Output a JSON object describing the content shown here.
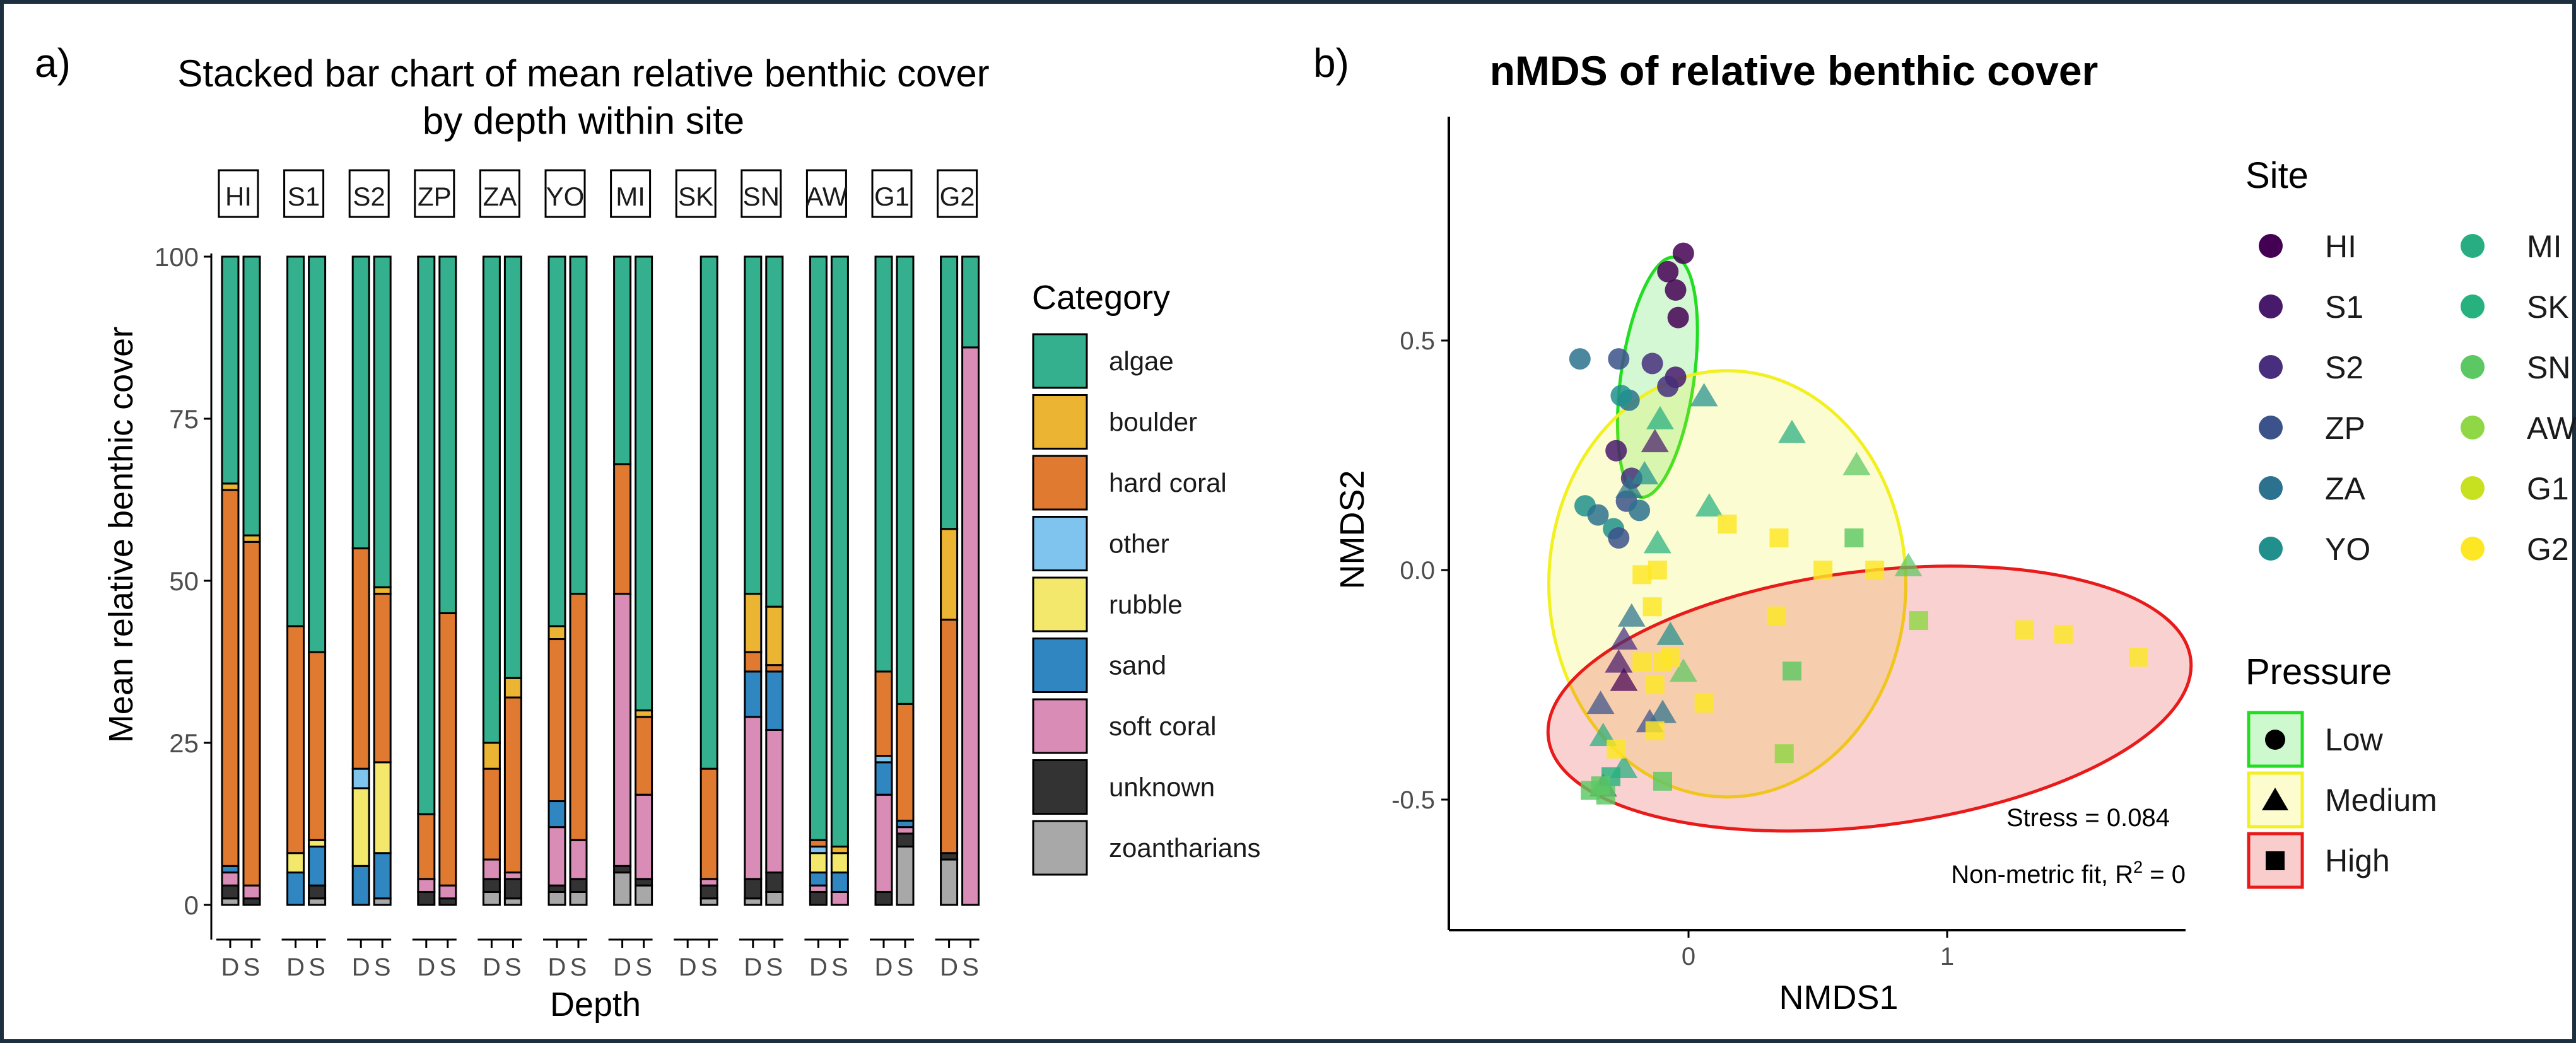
{
  "colors": {
    "frame": "#1d2f3f",
    "algae": "#35b08e",
    "boulder": "#ebb432",
    "hard_coral": "#e07a30",
    "other": "#7ec4ee",
    "rubble": "#f3e86c",
    "sand": "#2f86c1",
    "soft_coral": "#d98cb6",
    "unknown": "#333333",
    "zoantharians": "#a8a8a8",
    "pressure_low": "#22dd22",
    "pressure_medium": "#f2f020",
    "pressure_high": "#e81a1a"
  },
  "panel_a": {
    "tag": "a)",
    "title_line1": "Stacked bar chart of mean relative benthic cover",
    "title_line2": "by depth within site",
    "ylabel": "Mean relative benthic cover",
    "xlabel": "Depth",
    "legend_title": "Category"
  },
  "panel_b": {
    "tag": "b)",
    "title": "nMDS of relative benthic cover",
    "xlabel": "NMDS1",
    "ylabel": "NMDS2",
    "stress": "Stress = 0.084",
    "fit_prefix": "Non-metric fit, R",
    "fit_sup": "2",
    "fit_suffix": " = 0",
    "site_legend_title": "Site",
    "pressure_legend_title": "Pressure"
  },
  "chart_data": [
    {
      "type": "bar",
      "stacked": true,
      "facets": [
        "HI",
        "S1",
        "S2",
        "ZP",
        "ZA",
        "YO",
        "MI",
        "SK",
        "SN",
        "AW",
        "G1",
        "G2"
      ],
      "depths": [
        "D",
        "S"
      ],
      "ylim": [
        0,
        100
      ],
      "yticks": [
        0,
        25,
        50,
        75,
        100
      ],
      "categories": [
        "zoantharians",
        "unknown",
        "soft coral",
        "sand",
        "rubble",
        "other",
        "hard coral",
        "boulder",
        "algae"
      ],
      "category_keys": [
        "zoantharians",
        "unknown",
        "soft_coral",
        "sand",
        "rubble",
        "other",
        "hard_coral",
        "boulder",
        "algae"
      ],
      "legend_order": [
        "algae",
        "boulder",
        "hard coral",
        "other",
        "rubble",
        "sand",
        "soft coral",
        "unknown",
        "zoantharians"
      ],
      "legend_keys": [
        "algae",
        "boulder",
        "hard_coral",
        "other",
        "rubble",
        "sand",
        "soft_coral",
        "unknown",
        "zoantharians"
      ],
      "bars": [
        {
          "site": "HI",
          "depth": "D",
          "values": [
            1,
            2,
            2,
            1,
            0,
            0,
            58,
            1,
            35
          ]
        },
        {
          "site": "HI",
          "depth": "S",
          "values": [
            0,
            1,
            2,
            0,
            0,
            0,
            53,
            1,
            43
          ]
        },
        {
          "site": "S1",
          "depth": "D",
          "values": [
            0,
            0,
            0,
            5,
            3,
            0,
            35,
            0,
            57
          ]
        },
        {
          "site": "S1",
          "depth": "S",
          "values": [
            1,
            2,
            0,
            6,
            1,
            0,
            29,
            0,
            61
          ]
        },
        {
          "site": "S2",
          "depth": "D",
          "values": [
            0,
            0,
            0,
            6,
            12,
            3,
            34,
            0,
            45
          ]
        },
        {
          "site": "S2",
          "depth": "S",
          "values": [
            1,
            0,
            0,
            7,
            14,
            0,
            26,
            1,
            51
          ]
        },
        {
          "site": "ZP",
          "depth": "D",
          "values": [
            0,
            2,
            2,
            0,
            0,
            0,
            10,
            0,
            86
          ]
        },
        {
          "site": "ZP",
          "depth": "S",
          "values": [
            0,
            1,
            2,
            0,
            0,
            0,
            42,
            0,
            55
          ]
        },
        {
          "site": "ZA",
          "depth": "D",
          "values": [
            2,
            2,
            3,
            0,
            0,
            0,
            14,
            4,
            75
          ]
        },
        {
          "site": "ZA",
          "depth": "S",
          "values": [
            1,
            3,
            1,
            0,
            0,
            0,
            27,
            3,
            65
          ]
        },
        {
          "site": "YO",
          "depth": "D",
          "values": [
            2,
            1,
            9,
            4,
            0,
            0,
            25,
            2,
            57
          ]
        },
        {
          "site": "YO",
          "depth": "S",
          "values": [
            2,
            2,
            6,
            0,
            0,
            0,
            38,
            0,
            52
          ]
        },
        {
          "site": "MI",
          "depth": "D",
          "values": [
            5,
            1,
            42,
            0,
            0,
            0,
            20,
            0,
            32
          ]
        },
        {
          "site": "MI",
          "depth": "S",
          "values": [
            3,
            1,
            13,
            0,
            0,
            0,
            12,
            1,
            70
          ]
        },
        {
          "site": "SK",
          "depth": "S",
          "values": [
            1,
            2,
            1,
            0,
            0,
            0,
            17,
            0,
            79
          ]
        },
        {
          "site": "SN",
          "depth": "D",
          "values": [
            1,
            3,
            25,
            7,
            0,
            0,
            3,
            9,
            52
          ]
        },
        {
          "site": "SN",
          "depth": "S",
          "values": [
            2,
            3,
            22,
            9,
            0,
            0,
            1,
            9,
            54
          ]
        },
        {
          "site": "AW",
          "depth": "D",
          "values": [
            0,
            2,
            1,
            2,
            3,
            1,
            1,
            0,
            90
          ]
        },
        {
          "site": "AW",
          "depth": "S",
          "values": [
            0,
            0,
            2,
            3,
            3,
            0,
            0,
            1,
            91
          ]
        },
        {
          "site": "G1",
          "depth": "D",
          "values": [
            0,
            2,
            15,
            5,
            0,
            1,
            13,
            0,
            64
          ]
        },
        {
          "site": "G1",
          "depth": "S",
          "values": [
            9,
            2,
            1,
            1,
            0,
            0,
            18,
            0,
            69
          ]
        },
        {
          "site": "G2",
          "depth": "D",
          "values": [
            7,
            1,
            0,
            0,
            0,
            0,
            36,
            14,
            42
          ]
        },
        {
          "site": "G2",
          "depth": "S",
          "values": [
            0,
            0,
            86,
            0,
            0,
            0,
            0,
            0,
            14
          ]
        }
      ]
    },
    {
      "type": "scatter",
      "title": "nMDS of relative benthic cover",
      "xlabel": "NMDS1",
      "ylabel": "NMDS2",
      "xlim": [
        -0.95,
        1.95
      ],
      "ylim": [
        -0.78,
        0.98
      ],
      "xticks": [
        0,
        1
      ],
      "yticks": [
        -0.5,
        0.0,
        0.5
      ],
      "ytick_labels": [
        "-0.5",
        "0.0",
        "0.5"
      ],
      "stress": 0.084,
      "r2": 0,
      "sites": [
        {
          "name": "HI",
          "color": "#440154"
        },
        {
          "name": "S1",
          "color": "#481a6c"
        },
        {
          "name": "S2",
          "color": "#472f7d"
        },
        {
          "name": "ZP",
          "color": "#3b528b"
        },
        {
          "name": "ZA",
          "color": "#2c728e"
        },
        {
          "name": "YO",
          "color": "#21908d"
        },
        {
          "name": "MI",
          "color": "#27ad81"
        },
        {
          "name": "SK",
          "color": "#27b17e"
        },
        {
          "name": "SN",
          "color": "#5cc863"
        },
        {
          "name": "AW",
          "color": "#8fd744"
        },
        {
          "name": "G1",
          "color": "#c7e020"
        },
        {
          "name": "G2",
          "color": "#fde725"
        }
      ],
      "pressure_levels": [
        "Low",
        "Medium",
        "High"
      ],
      "ellipses": [
        {
          "pressure": "Low",
          "cx": -0.12,
          "cy": 0.42,
          "rx": 0.31,
          "ry": 0.11,
          "angle": 82
        },
        {
          "pressure": "Medium",
          "cx": 0.15,
          "cy": -0.03,
          "rx": 0.72,
          "ry": 0.46,
          "angle": 90
        },
        {
          "pressure": "High",
          "cx": 0.7,
          "cy": -0.28,
          "rx": 1.27,
          "ry": 0.33,
          "angle": 6
        }
      ],
      "points": [
        {
          "x": -0.02,
          "y": 0.69,
          "site": "HI",
          "shape": "circle"
        },
        {
          "x": -0.08,
          "y": 0.65,
          "site": "HI",
          "shape": "circle"
        },
        {
          "x": -0.05,
          "y": 0.61,
          "site": "HI",
          "shape": "circle"
        },
        {
          "x": -0.04,
          "y": 0.55,
          "site": "HI",
          "shape": "circle"
        },
        {
          "x": -0.05,
          "y": 0.42,
          "site": "S1",
          "shape": "circle"
        },
        {
          "x": -0.08,
          "y": 0.4,
          "site": "S2",
          "shape": "circle"
        },
        {
          "x": -0.14,
          "y": 0.45,
          "site": "S2",
          "shape": "circle"
        },
        {
          "x": -0.27,
          "y": 0.46,
          "site": "ZP",
          "shape": "circle"
        },
        {
          "x": -0.42,
          "y": 0.46,
          "site": "ZA",
          "shape": "circle"
        },
        {
          "x": -0.23,
          "y": 0.37,
          "site": "ZA",
          "shape": "circle"
        },
        {
          "x": -0.26,
          "y": 0.38,
          "site": "YO",
          "shape": "circle"
        },
        {
          "x": -0.28,
          "y": 0.26,
          "site": "S1",
          "shape": "circle"
        },
        {
          "x": -0.22,
          "y": 0.2,
          "site": "S2",
          "shape": "circle"
        },
        {
          "x": -0.24,
          "y": 0.15,
          "site": "ZP",
          "shape": "circle"
        },
        {
          "x": -0.19,
          "y": 0.13,
          "site": "ZA",
          "shape": "circle"
        },
        {
          "x": -0.4,
          "y": 0.14,
          "site": "YO",
          "shape": "circle"
        },
        {
          "x": -0.35,
          "y": 0.12,
          "site": "ZA",
          "shape": "circle"
        },
        {
          "x": -0.29,
          "y": 0.09,
          "site": "YO",
          "shape": "circle"
        },
        {
          "x": -0.27,
          "y": 0.07,
          "site": "ZP",
          "shape": "circle"
        },
        {
          "x": -0.13,
          "y": 0.28,
          "site": "S1",
          "shape": "triangle"
        },
        {
          "x": -0.17,
          "y": 0.21,
          "site": "YO",
          "shape": "triangle"
        },
        {
          "x": -0.23,
          "y": 0.18,
          "site": "ZA",
          "shape": "triangle"
        },
        {
          "x": -0.11,
          "y": 0.33,
          "site": "MI",
          "shape": "triangle"
        },
        {
          "x": 0.06,
          "y": 0.38,
          "site": "YO",
          "shape": "triangle"
        },
        {
          "x": -0.12,
          "y": 0.06,
          "site": "SK",
          "shape": "triangle"
        },
        {
          "x": 0.08,
          "y": 0.14,
          "site": "SK",
          "shape": "triangle"
        },
        {
          "x": 0.4,
          "y": 0.3,
          "site": "MI",
          "shape": "triangle"
        },
        {
          "x": 0.65,
          "y": 0.23,
          "site": "SN",
          "shape": "triangle"
        },
        {
          "x": 0.85,
          "y": 0.01,
          "site": "SN",
          "shape": "triangle"
        },
        {
          "x": -0.22,
          "y": -0.1,
          "site": "ZA",
          "shape": "triangle"
        },
        {
          "x": -0.25,
          "y": -0.15,
          "site": "S2",
          "shape": "triangle"
        },
        {
          "x": -0.27,
          "y": -0.2,
          "site": "S1",
          "shape": "triangle"
        },
        {
          "x": -0.25,
          "y": -0.24,
          "site": "HI",
          "shape": "triangle"
        },
        {
          "x": -0.34,
          "y": -0.29,
          "site": "ZP",
          "shape": "triangle"
        },
        {
          "x": -0.07,
          "y": -0.14,
          "site": "YO",
          "shape": "triangle"
        },
        {
          "x": -0.02,
          "y": -0.22,
          "site": "SN",
          "shape": "triangle"
        },
        {
          "x": -0.15,
          "y": -0.33,
          "site": "ZP",
          "shape": "triangle"
        },
        {
          "x": -0.1,
          "y": -0.31,
          "site": "ZA",
          "shape": "triangle"
        },
        {
          "x": -0.33,
          "y": -0.36,
          "site": "MI",
          "shape": "triangle"
        },
        {
          "x": -0.33,
          "y": -0.47,
          "site": "S2",
          "shape": "triangle"
        },
        {
          "x": -0.25,
          "y": -0.43,
          "site": "MI",
          "shape": "triangle"
        },
        {
          "x": -0.14,
          "y": -0.08,
          "site": "G2",
          "shape": "square"
        },
        {
          "x": -0.18,
          "y": -0.01,
          "site": "G2",
          "shape": "square"
        },
        {
          "x": -0.12,
          "y": 0.0,
          "site": "G2",
          "shape": "square"
        },
        {
          "x": -0.18,
          "y": -0.2,
          "site": "G2",
          "shape": "square"
        },
        {
          "x": -0.1,
          "y": -0.2,
          "site": "G2",
          "shape": "square"
        },
        {
          "x": -0.07,
          "y": -0.19,
          "site": "G2",
          "shape": "square"
        },
        {
          "x": -0.13,
          "y": -0.25,
          "site": "G2",
          "shape": "square"
        },
        {
          "x": -0.13,
          "y": -0.35,
          "site": "G2",
          "shape": "square"
        },
        {
          "x": -0.28,
          "y": -0.39,
          "site": "G2",
          "shape": "square"
        },
        {
          "x": 0.15,
          "y": 0.1,
          "site": "G2",
          "shape": "square"
        },
        {
          "x": 0.35,
          "y": 0.07,
          "site": "G2",
          "shape": "square"
        },
        {
          "x": 0.52,
          "y": 0.0,
          "site": "G2",
          "shape": "square"
        },
        {
          "x": 0.72,
          "y": 0.0,
          "site": "G2",
          "shape": "square"
        },
        {
          "x": 0.34,
          "y": -0.1,
          "site": "G2",
          "shape": "square"
        },
        {
          "x": 0.06,
          "y": -0.29,
          "site": "G2",
          "shape": "square"
        },
        {
          "x": 1.3,
          "y": -0.13,
          "site": "G2",
          "shape": "square"
        },
        {
          "x": 1.45,
          "y": -0.14,
          "site": "G2",
          "shape": "square"
        },
        {
          "x": 1.74,
          "y": -0.19,
          "site": "G2",
          "shape": "square"
        },
        {
          "x": 0.64,
          "y": 0.07,
          "site": "SN",
          "shape": "square"
        },
        {
          "x": 0.4,
          "y": -0.22,
          "site": "SN",
          "shape": "square"
        },
        {
          "x": 0.37,
          "y": -0.4,
          "site": "AW",
          "shape": "square"
        },
        {
          "x": 0.89,
          "y": -0.11,
          "site": "AW",
          "shape": "square"
        },
        {
          "x": -0.1,
          "y": -0.46,
          "site": "SN",
          "shape": "square"
        },
        {
          "x": -0.3,
          "y": -0.45,
          "site": "SK",
          "shape": "square"
        },
        {
          "x": -0.32,
          "y": -0.49,
          "site": "SN",
          "shape": "square"
        },
        {
          "x": -0.38,
          "y": -0.48,
          "site": "SN",
          "shape": "square"
        },
        {
          "x": -0.34,
          "y": -0.47,
          "site": "SN",
          "shape": "square"
        }
      ]
    }
  ]
}
